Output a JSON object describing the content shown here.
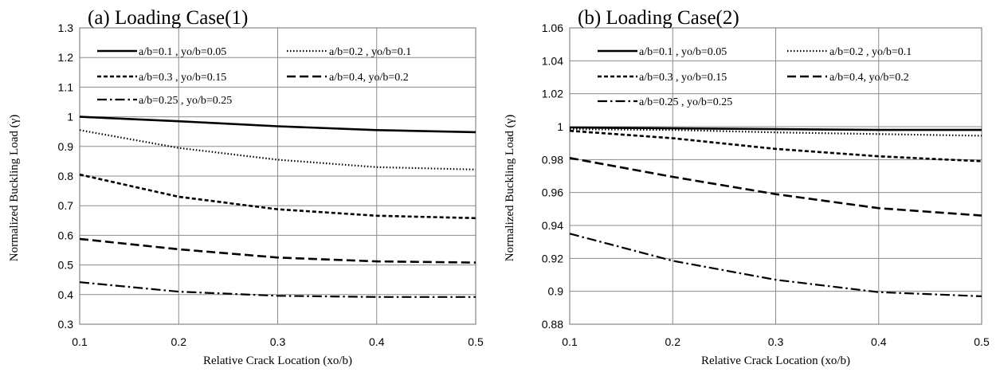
{
  "chart_data": [
    {
      "type": "line",
      "title": "(a) Loading Case(1)",
      "xlabel": "Relative Crack Location (xo/b)",
      "ylabel": "Normalized Buckling Load (γ)",
      "xlim": [
        0.1,
        0.5
      ],
      "ylim": [
        0.3,
        1.3
      ],
      "xticks": [
        "0.1",
        "0.2",
        "0.3",
        "0.4",
        "0.5"
      ],
      "yticks": [
        "0.3",
        "0.4",
        "0.5",
        "0.6",
        "0.7",
        "0.8",
        "0.9",
        "1",
        "1.1",
        "1.2",
        "1.3"
      ],
      "grid": true,
      "legend_position": "top",
      "series": [
        {
          "name": "a/b=0.1 , yo/b=0.05",
          "style": "solid",
          "x": [
            0.1,
            0.2,
            0.3,
            0.4,
            0.5
          ],
          "values": [
            1.0,
            0.985,
            0.968,
            0.955,
            0.948
          ]
        },
        {
          "name": "a/b=0.2 , yo/b=0.1",
          "style": "dotted",
          "x": [
            0.1,
            0.2,
            0.3,
            0.4,
            0.5
          ],
          "values": [
            0.955,
            0.895,
            0.855,
            0.83,
            0.822
          ]
        },
        {
          "name": "a/b=0.3 , yo/b=0.15",
          "style": "short-dash",
          "x": [
            0.1,
            0.2,
            0.3,
            0.4,
            0.5
          ],
          "values": [
            0.805,
            0.73,
            0.688,
            0.666,
            0.658
          ]
        },
        {
          "name": "a/b=0.4, yo/b=0.2",
          "style": "long-dash",
          "x": [
            0.1,
            0.2,
            0.3,
            0.4,
            0.5
          ],
          "values": [
            0.588,
            0.553,
            0.525,
            0.512,
            0.508
          ]
        },
        {
          "name": "a/b=0.25 , yo/b=0.25",
          "style": "dash-dot",
          "x": [
            0.1,
            0.2,
            0.3,
            0.4,
            0.5
          ],
          "values": [
            0.442,
            0.41,
            0.396,
            0.392,
            0.392
          ]
        }
      ]
    },
    {
      "type": "line",
      "title": "(b) Loading Case(2)",
      "xlabel": "Relative Crack Location (xo/b)",
      "ylabel": "Normalized Buckling Load (γ)",
      "xlim": [
        0.1,
        0.5
      ],
      "ylim": [
        0.88,
        1.06
      ],
      "xticks": [
        "0.1",
        "0.2",
        "0.3",
        "0.4",
        "0.5"
      ],
      "yticks": [
        "0.88",
        "0.9",
        "0.92",
        "0.94",
        "0.96",
        "0.98",
        "1",
        "1.02",
        "1.04",
        "1.06"
      ],
      "grid": true,
      "legend_position": "top",
      "series": [
        {
          "name": "a/b=0.1 , yo/b=0.05",
          "style": "solid",
          "x": [
            0.1,
            0.2,
            0.3,
            0.4,
            0.5
          ],
          "values": [
            0.9995,
            0.999,
            0.9985,
            0.998,
            0.998
          ]
        },
        {
          "name": "a/b=0.2 , yo/b=0.1",
          "style": "dotted",
          "x": [
            0.1,
            0.2,
            0.3,
            0.4,
            0.5
          ],
          "values": [
            0.9985,
            0.998,
            0.9965,
            0.9955,
            0.9945
          ]
        },
        {
          "name": "a/b=0.3 , yo/b=0.15",
          "style": "short-dash",
          "x": [
            0.1,
            0.2,
            0.3,
            0.4,
            0.5
          ],
          "values": [
            0.9975,
            0.993,
            0.9865,
            0.982,
            0.979
          ]
        },
        {
          "name": "a/b=0.4, yo/b=0.2",
          "style": "long-dash",
          "x": [
            0.1,
            0.2,
            0.3,
            0.4,
            0.5
          ],
          "values": [
            0.981,
            0.9695,
            0.959,
            0.9505,
            0.946
          ]
        },
        {
          "name": "a/b=0.25 , yo/b=0.25",
          "style": "dash-dot",
          "x": [
            0.1,
            0.2,
            0.3,
            0.4,
            0.5
          ],
          "values": [
            0.935,
            0.9185,
            0.907,
            0.8995,
            0.897
          ]
        }
      ]
    }
  ]
}
